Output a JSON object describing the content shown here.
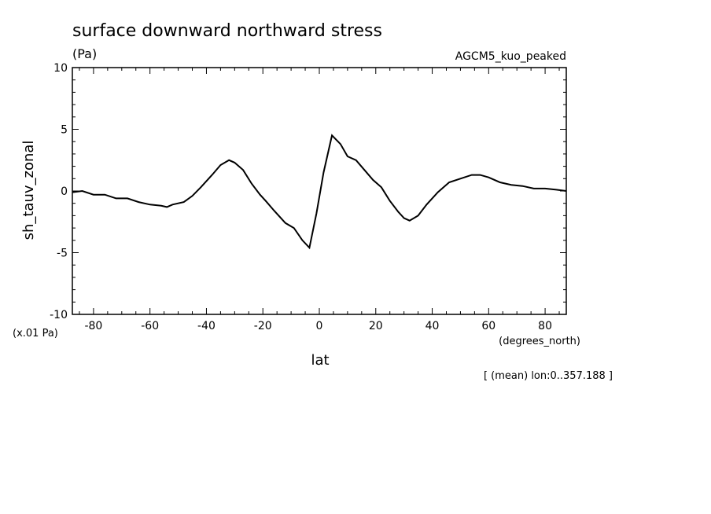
{
  "chart_data": {
    "type": "line",
    "title": "surface downward northward stress",
    "units": "(Pa)",
    "dataset": "AGCM5_kuo_peaked",
    "ylabel": "sh_tauv_zonal",
    "yscale_note": "(x.01 Pa)",
    "xlabel": "lat",
    "xunits": "(degrees_north)",
    "footnote": "[ (mean) lon:0..357.188 ]",
    "xlim": [
      -87.5,
      87.5
    ],
    "ylim": [
      -10,
      10
    ],
    "xticks": [
      -80,
      -60,
      -40,
      -20,
      0,
      20,
      40,
      60,
      80
    ],
    "xtick_labels": [
      "-80",
      "-60",
      "-40",
      "-20",
      "0",
      "20",
      "40",
      "60",
      "80"
    ],
    "yticks": [
      -10,
      -5,
      0,
      5,
      10
    ],
    "ytick_labels": [
      "-10",
      "-5",
      "0",
      "5",
      "10"
    ],
    "grid": false,
    "series": [
      {
        "x": [
          -87.5,
          -84,
          -80,
          -76,
          -72,
          -68,
          -64,
          -60,
          -56,
          -54,
          -52,
          -48,
          -45,
          -42,
          -38,
          -35,
          -32,
          -30,
          -27,
          -24,
          -21,
          -19,
          -16,
          -12,
          -9,
          -6,
          -3.5,
          -1,
          1.5,
          4.5,
          7.5,
          10,
          13,
          16,
          19,
          22,
          25,
          28,
          30,
          32,
          35,
          38,
          42,
          46,
          50,
          54,
          57,
          60,
          64,
          68,
          72,
          76,
          80,
          84,
          87.5
        ],
        "y": [
          -0.1,
          0,
          -0.3,
          -0.3,
          -0.6,
          -0.6,
          -0.9,
          -1.1,
          -1.2,
          -1.3,
          -1.1,
          -0.9,
          -0.4,
          0.3,
          1.3,
          2.1,
          2.5,
          2.3,
          1.7,
          0.6,
          -0.3,
          -0.8,
          -1.6,
          -2.6,
          -3.0,
          -4.0,
          -4.6,
          -1.8,
          1.5,
          4.5,
          3.8,
          2.8,
          2.5,
          1.7,
          0.9,
          0.3,
          -0.8,
          -1.7,
          -2.2,
          -2.4,
          -2.0,
          -1.1,
          -0.1,
          0.7,
          1.0,
          1.3,
          1.3,
          1.1,
          0.7,
          0.5,
          0.4,
          0.2,
          0.2,
          0.1,
          0
        ]
      }
    ]
  }
}
